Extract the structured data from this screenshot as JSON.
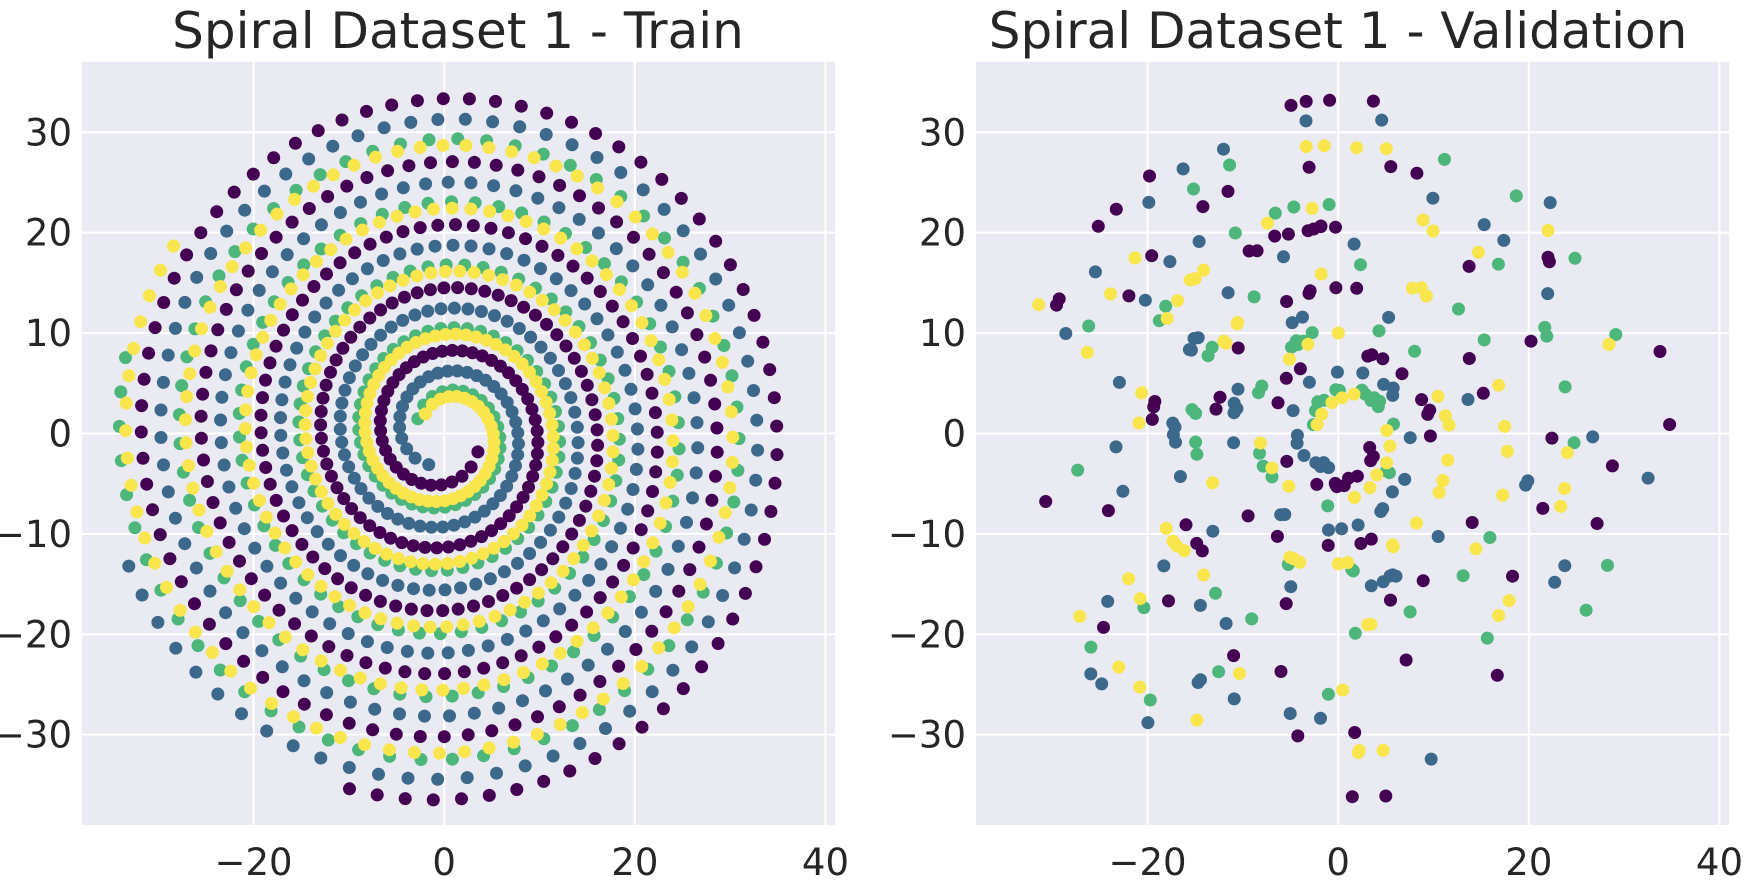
{
  "chart_data": [
    {
      "type": "scatter",
      "title": "Spiral Dataset 1 - Train",
      "xlabel": "",
      "ylabel": "",
      "xlim": [
        -38,
        41
      ],
      "ylim": [
        -39,
        37
      ],
      "xticks": [
        -20,
        0,
        20,
        40
      ],
      "yticks": [
        -30,
        -20,
        -10,
        0,
        10,
        20,
        30
      ],
      "xtick_labels": [
        "−20",
        "0",
        "20",
        "40"
      ],
      "ytick_labels": [
        "−30",
        "−20",
        "−10",
        "0",
        "10",
        "20",
        "30"
      ],
      "grid": true,
      "legend": "none",
      "series": [
        {
          "color": "#440154",
          "spiral": {
            "r0": 3.5,
            "rate": 2.95,
            "phase": 0.0,
            "turns": 5.3
          },
          "points": 340,
          "jitter": 0.0
        },
        {
          "color": "#3b688b",
          "spiral": {
            "r0": 3.0,
            "rate": 2.95,
            "phase": 1.55,
            "turns": 5.2
          },
          "points": 300,
          "jitter": 0.0
        },
        {
          "color": "#4cb67b",
          "spiral": {
            "r0": 2.6,
            "rate": 2.95,
            "phase": 3.1,
            "turns": 5.05
          },
          "points": 260,
          "jitter": 0.0
        },
        {
          "color": "#f9e54c",
          "spiral": {
            "r0": 2.3,
            "rate": 2.95,
            "phase": 3.45,
            "turns": 5.05
          },
          "points": 320,
          "jitter": 0.0
        }
      ]
    },
    {
      "type": "scatter",
      "title": "Spiral Dataset 1 - Validation",
      "xlabel": "",
      "ylabel": "",
      "xlim": [
        -38,
        41
      ],
      "ylim": [
        -39,
        37
      ],
      "xticks": [
        -20,
        0,
        20,
        40
      ],
      "yticks": [
        -30,
        -20,
        -10,
        0,
        10,
        20,
        30
      ],
      "xtick_labels": [
        "−20",
        "0",
        "20",
        "40"
      ],
      "ytick_labels": [
        "−30",
        "−20",
        "−10",
        "0",
        "10",
        "20",
        "30"
      ],
      "grid": true,
      "legend": "none",
      "series": [
        {
          "color": "#440154",
          "spiral": {
            "r0": 3.5,
            "rate": 2.95,
            "phase": 0.0,
            "turns": 5.3
          },
          "points": 95,
          "jitter": 0.6
        },
        {
          "color": "#3b688b",
          "spiral": {
            "r0": 3.0,
            "rate": 2.95,
            "phase": 1.55,
            "turns": 5.2
          },
          "points": 90,
          "jitter": 0.6
        },
        {
          "color": "#4cb67b",
          "spiral": {
            "r0": 2.6,
            "rate": 2.95,
            "phase": 3.1,
            "turns": 5.05
          },
          "points": 75,
          "jitter": 0.6
        },
        {
          "color": "#f9e54c",
          "spiral": {
            "r0": 2.3,
            "rate": 2.95,
            "phase": 3.45,
            "turns": 5.05
          },
          "points": 90,
          "jitter": 0.6
        }
      ]
    }
  ]
}
